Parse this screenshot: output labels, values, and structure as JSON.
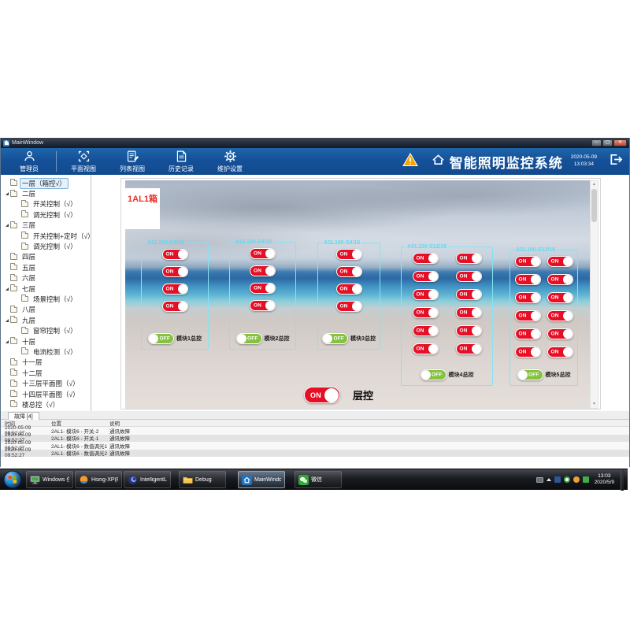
{
  "window": {
    "title": "MainWindow"
  },
  "toolbar": {
    "user": {
      "label": "管理员",
      "icon": "user-icon"
    },
    "items": [
      {
        "label": "平面视图",
        "icon": "plan-view-icon"
      },
      {
        "label": "列表视图",
        "icon": "list-view-icon"
      },
      {
        "label": "历史记录",
        "icon": "history-icon"
      },
      {
        "label": "维护设置",
        "icon": "settings-gear-icon"
      }
    ],
    "alert_icon": "warning-triangle-icon",
    "logo_icon": "home-logo-icon",
    "system_title": "智能照明监控系统",
    "date": "2020-05-09",
    "time": "13:03:34",
    "exit_icon": "logout-icon"
  },
  "sidebar": {
    "items": [
      {
        "label": "一层（箱控√）",
        "level": 0,
        "expandable": false,
        "selected": true
      },
      {
        "label": "二层",
        "level": 0,
        "expandable": true,
        "selected": false
      },
      {
        "label": "开关控制（√）",
        "level": 1,
        "expandable": false,
        "selected": false
      },
      {
        "label": "调光控制（√）",
        "level": 1,
        "expandable": false,
        "selected": false
      },
      {
        "label": "三层",
        "level": 0,
        "expandable": true,
        "selected": false
      },
      {
        "label": "开关控制+定时（√）",
        "level": 1,
        "expandable": false,
        "selected": false
      },
      {
        "label": "调光控制（√）",
        "level": 1,
        "expandable": false,
        "selected": false
      },
      {
        "label": "四层",
        "level": 0,
        "expandable": false,
        "selected": false
      },
      {
        "label": "五层",
        "level": 0,
        "expandable": false,
        "selected": false
      },
      {
        "label": "六层",
        "level": 0,
        "expandable": false,
        "selected": false
      },
      {
        "label": "七层",
        "level": 0,
        "expandable": true,
        "selected": false
      },
      {
        "label": "场景控制（√）",
        "level": 1,
        "expandable": false,
        "selected": false
      },
      {
        "label": "八层",
        "level": 0,
        "expandable": false,
        "selected": false
      },
      {
        "label": "九层",
        "level": 0,
        "expandable": true,
        "selected": false
      },
      {
        "label": "窗帘控制（√）",
        "level": 1,
        "expandable": false,
        "selected": false
      },
      {
        "label": "十层",
        "level": 0,
        "expandable": true,
        "selected": false
      },
      {
        "label": "电流检测（√）",
        "level": 1,
        "expandable": false,
        "selected": false
      },
      {
        "label": "十一层",
        "level": 0,
        "expandable": false,
        "selected": false
      },
      {
        "label": "十二层",
        "level": 0,
        "expandable": false,
        "selected": false
      },
      {
        "label": "十三层平面图（√）",
        "level": 0,
        "expandable": false,
        "selected": false
      },
      {
        "label": "十四层平面图（√）",
        "level": 0,
        "expandable": false,
        "selected": false
      },
      {
        "label": "楼总控（√）",
        "level": 0,
        "expandable": false,
        "selected": false
      }
    ]
  },
  "main": {
    "box_label": "1AL1箱",
    "groups": [
      {
        "model": "ASL100-S4/16",
        "switches": 4,
        "columns": 1,
        "switch_state": "ON",
        "master_state": "OFF",
        "master_label": "模块1总控"
      },
      {
        "model": "ASL100-S4/16",
        "switches": 4,
        "columns": 1,
        "switch_state": "ON",
        "master_state": "OFF",
        "master_label": "模块2总控"
      },
      {
        "model": "ASL100-S4/16",
        "switches": 4,
        "columns": 1,
        "switch_state": "ON",
        "master_state": "OFF",
        "master_label": "模块3总控"
      },
      {
        "model": "ASL100-S12/16",
        "switches": 12,
        "columns": 2,
        "switch_state": "ON",
        "master_state": "OFF",
        "master_label": "模块4总控"
      },
      {
        "model": "ASL100-S12/16",
        "switches": 12,
        "columns": 2,
        "switch_state": "ON",
        "master_state": "OFF",
        "master_label": "模块5总控"
      }
    ],
    "floor_control": {
      "state": "ON",
      "label": "层控"
    }
  },
  "faults": {
    "tab": "故障 [4]",
    "columns": [
      "时间",
      "位置",
      "说明"
    ],
    "rows": [
      [
        "2020-05-09 09:52:27",
        "2AL1- 模块6 - 开关-2",
        "通讯故障"
      ],
      [
        "2020-05-09 09:52:27",
        "2AL1- 模块6 - 开关-1",
        "通讯故障"
      ],
      [
        "2020-05-09 09:52:27",
        "2AL1- 模块6 - 数值调光1",
        "通讯故障"
      ],
      [
        "2020-05-09 09:52:27",
        "2AL1- 模块6 - 数值调光2",
        "通讯故障"
      ]
    ]
  },
  "taskbar": {
    "start_icon": "windows-start-icon",
    "buttons": [
      {
        "label": "Windows 任务管...",
        "icon": "monitor-icon",
        "active": false
      },
      {
        "label": "Hsing-XP(PC211...",
        "icon": "cloud-icon",
        "active": false
      },
      {
        "label": "IntelligentLightin...",
        "icon": "swirl-icon",
        "active": false
      },
      {
        "label": "Debug",
        "icon": "folder-icon",
        "active": false
      },
      {
        "label": "MainWindow",
        "icon": "home-app-icon",
        "active": true
      },
      {
        "label": "微信",
        "icon": "wechat-icon",
        "active": false
      }
    ],
    "tray_icons": [
      "computer-tray-icon",
      "show-hidden-icon",
      "network-tray-icon",
      "messenger-tray-icon",
      "security-tray-icon",
      "update-tray-icon"
    ],
    "clock": {
      "time": "13:03",
      "date": "2020/5/9"
    }
  },
  "colors": {
    "toolbar_blue": "#155199",
    "switch_on_red": "#e60f25",
    "switch_off_green": "#85c33e",
    "group_border_cyan": "#85e3f3",
    "alert_orange": "#f7a400",
    "box_label_red": "#e8312a"
  }
}
